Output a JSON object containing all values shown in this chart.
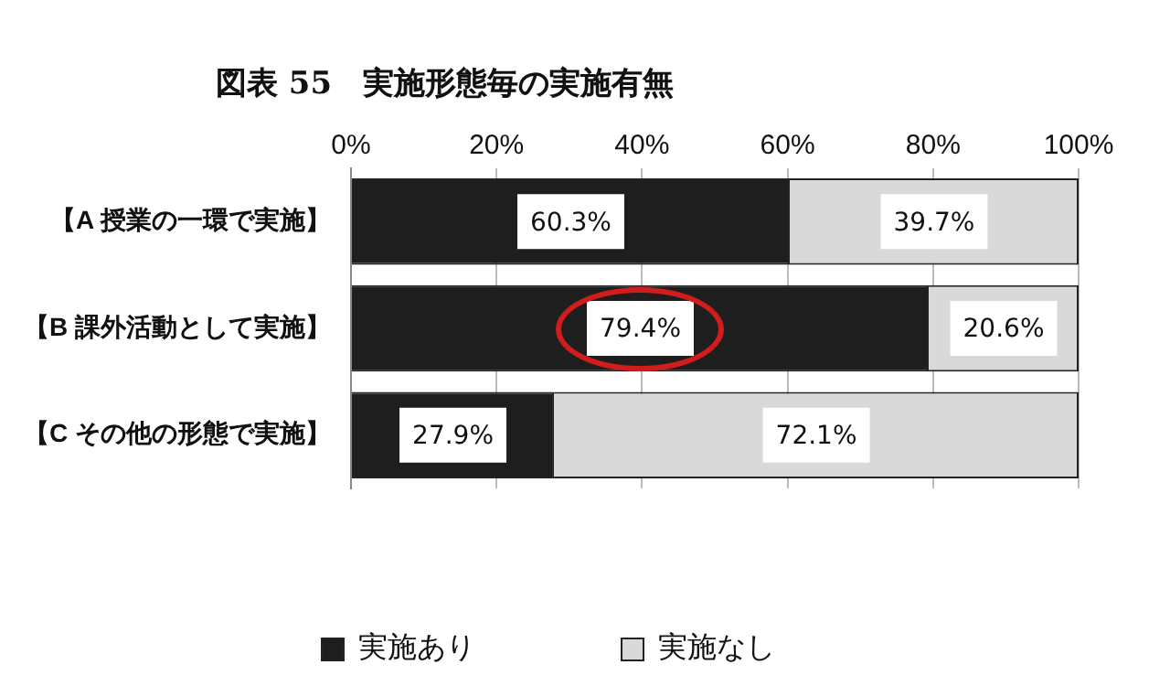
{
  "chart_data": {
    "type": "bar",
    "orientation": "horizontal",
    "stacked": true,
    "title": "図表 55　実施形態毎の実施有無",
    "categories": [
      "【A 授業の一環で実施】",
      "【B 課外活動として実施】",
      "【C その他の形態で実施】"
    ],
    "series": [
      {
        "name": "実施あり",
        "color": "#1e1e1e",
        "values": [
          60.3,
          79.4,
          27.9
        ]
      },
      {
        "name": "実施なし",
        "color": "#d9d9d9",
        "values": [
          39.7,
          20.6,
          72.1
        ]
      }
    ],
    "xlim": [
      0,
      100
    ],
    "xticks": [
      {
        "value": 0,
        "label": "0%"
      },
      {
        "value": 20,
        "label": "20%"
      },
      {
        "value": 40,
        "label": "40%"
      },
      {
        "value": 60,
        "label": "60%"
      },
      {
        "value": 80,
        "label": "80%"
      },
      {
        "value": 100,
        "label": "100%"
      }
    ],
    "value_labels": [
      [
        "60.3%",
        "79.4%",
        "27.9%"
      ],
      [
        "39.7%",
        "20.6%",
        "72.1%"
      ]
    ],
    "grid": "x",
    "legend": "bottom"
  }
}
